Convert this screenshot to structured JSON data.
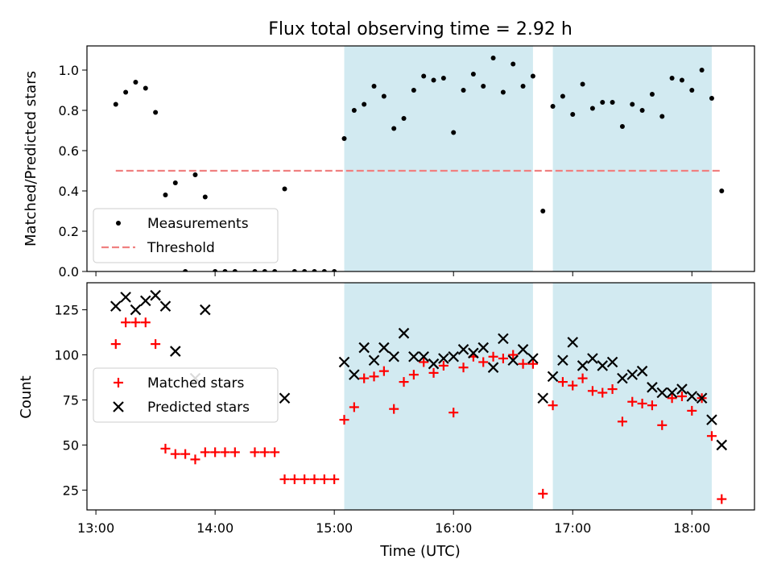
{
  "chart_data": {
    "type": "scatter",
    "title": "Flux total observing time = 2.92 h",
    "xlabel": "Time (UTC)",
    "x_ticks": [
      "13:00",
      "14:00",
      "15:00",
      "16:00",
      "17:00",
      "18:00"
    ],
    "shaded_intervals": [
      [
        "15:05",
        "16:40"
      ],
      [
        "16:50",
        "18:10"
      ]
    ],
    "shade_color": "#add8e6",
    "panels": [
      {
        "id": "ratio",
        "ylabel": "Matched/Predicted stars",
        "ylim": [
          0.0,
          1.12
        ],
        "y_ticks": [
          "0.0",
          "0.2",
          "0.4",
          "0.6",
          "0.8",
          "1.0"
        ],
        "legend": {
          "placement": "lower-left",
          "entries": [
            "Measurements",
            "Threshold"
          ]
        },
        "threshold": {
          "name": "Threshold",
          "value": 0.5,
          "x_range": [
            "13:10",
            "18:15"
          ],
          "color": "#f08080"
        },
        "series": [
          {
            "name": "Measurements",
            "marker": "dot",
            "color": "#000000",
            "points": [
              [
                "13:10",
                0.83
              ],
              [
                "13:15",
                0.89
              ],
              [
                "13:20",
                0.94
              ],
              [
                "13:25",
                0.91
              ],
              [
                "13:30",
                0.79
              ],
              [
                "13:35",
                0.38
              ],
              [
                "13:40",
                0.44
              ],
              [
                "13:45",
                0.0
              ],
              [
                "13:50",
                0.48
              ],
              [
                "13:55",
                0.37
              ],
              [
                "14:00",
                0.0
              ],
              [
                "14:05",
                0.0
              ],
              [
                "14:10",
                0.0
              ],
              [
                "14:20",
                0.0
              ],
              [
                "14:25",
                0.0
              ],
              [
                "14:30",
                0.0
              ],
              [
                "14:35",
                0.41
              ],
              [
                "14:40",
                0.0
              ],
              [
                "14:45",
                0.0
              ],
              [
                "14:50",
                0.0
              ],
              [
                "14:55",
                0.0
              ],
              [
                "15:00",
                0.0
              ],
              [
                "15:05",
                0.66
              ],
              [
                "15:10",
                0.8
              ],
              [
                "15:15",
                0.83
              ],
              [
                "15:20",
                0.92
              ],
              [
                "15:25",
                0.87
              ],
              [
                "15:30",
                0.71
              ],
              [
                "15:35",
                0.76
              ],
              [
                "15:40",
                0.9
              ],
              [
                "15:45",
                0.97
              ],
              [
                "15:50",
                0.95
              ],
              [
                "15:55",
                0.96
              ],
              [
                "16:00",
                0.69
              ],
              [
                "16:05",
                0.9
              ],
              [
                "16:10",
                0.98
              ],
              [
                "16:15",
                0.92
              ],
              [
                "16:20",
                1.06
              ],
              [
                "16:25",
                0.89
              ],
              [
                "16:30",
                1.03
              ],
              [
                "16:35",
                0.92
              ],
              [
                "16:40",
                0.97
              ],
              [
                "16:45",
                0.3
              ],
              [
                "16:50",
                0.82
              ],
              [
                "16:55",
                0.87
              ],
              [
                "17:00",
                0.78
              ],
              [
                "17:05",
                0.93
              ],
              [
                "17:10",
                0.81
              ],
              [
                "17:15",
                0.84
              ],
              [
                "17:20",
                0.84
              ],
              [
                "17:25",
                0.72
              ],
              [
                "17:30",
                0.83
              ],
              [
                "17:35",
                0.8
              ],
              [
                "17:40",
                0.88
              ],
              [
                "17:45",
                0.77
              ],
              [
                "17:50",
                0.96
              ],
              [
                "17:55",
                0.95
              ],
              [
                "18:00",
                0.9
              ],
              [
                "18:05",
                1.0
              ],
              [
                "18:10",
                0.86
              ],
              [
                "18:15",
                0.4
              ]
            ]
          }
        ]
      },
      {
        "id": "count",
        "ylabel": "Count",
        "ylim": [
          14,
          140
        ],
        "y_ticks": [
          "25",
          "50",
          "75",
          "100",
          "125"
        ],
        "legend": {
          "placement": "center-left",
          "entries": [
            "Matched stars",
            "Predicted stars"
          ]
        },
        "series": [
          {
            "name": "Matched stars",
            "marker": "plus",
            "color": "#ff0000",
            "points": [
              [
                "13:10",
                106
              ],
              [
                "13:15",
                118
              ],
              [
                "13:20",
                118
              ],
              [
                "13:25",
                118
              ],
              [
                "13:30",
                106
              ],
              [
                "13:35",
                48
              ],
              [
                "13:40",
                45
              ],
              [
                "13:45",
                45
              ],
              [
                "13:50",
                42
              ],
              [
                "13:55",
                46
              ],
              [
                "14:00",
                46
              ],
              [
                "14:05",
                46
              ],
              [
                "14:10",
                46
              ],
              [
                "14:20",
                46
              ],
              [
                "14:25",
                46
              ],
              [
                "14:30",
                46
              ],
              [
                "14:35",
                31
              ],
              [
                "14:40",
                31
              ],
              [
                "14:45",
                31
              ],
              [
                "14:50",
                31
              ],
              [
                "14:55",
                31
              ],
              [
                "15:00",
                31
              ],
              [
                "15:05",
                64
              ],
              [
                "15:10",
                71
              ],
              [
                "15:15",
                87
              ],
              [
                "15:20",
                88
              ],
              [
                "15:25",
                91
              ],
              [
                "15:30",
                70
              ],
              [
                "15:35",
                85
              ],
              [
                "15:40",
                89
              ],
              [
                "15:45",
                96
              ],
              [
                "15:50",
                90
              ],
              [
                "15:55",
                94
              ],
              [
                "16:00",
                68
              ],
              [
                "16:05",
                93
              ],
              [
                "16:10",
                99
              ],
              [
                "16:15",
                96
              ],
              [
                "16:20",
                99
              ],
              [
                "16:25",
                98
              ],
              [
                "16:30",
                100
              ],
              [
                "16:35",
                95
              ],
              [
                "16:40",
                95
              ],
              [
                "16:45",
                23
              ],
              [
                "16:50",
                72
              ],
              [
                "16:55",
                85
              ],
              [
                "17:00",
                83
              ],
              [
                "17:05",
                87
              ],
              [
                "17:10",
                80
              ],
              [
                "17:15",
                79
              ],
              [
                "17:20",
                81
              ],
              [
                "17:25",
                63
              ],
              [
                "17:30",
                74
              ],
              [
                "17:35",
                73
              ],
              [
                "17:40",
                72
              ],
              [
                "17:45",
                61
              ],
              [
                "17:50",
                76
              ],
              [
                "17:55",
                77
              ],
              [
                "18:00",
                69
              ],
              [
                "18:05",
                76
              ],
              [
                "18:10",
                55
              ],
              [
                "18:15",
                20
              ]
            ]
          },
          {
            "name": "Predicted stars",
            "marker": "cross",
            "color": "#000000",
            "points": [
              [
                "13:10",
                127
              ],
              [
                "13:15",
                132
              ],
              [
                "13:20",
                125
              ],
              [
                "13:25",
                130
              ],
              [
                "13:30",
                133
              ],
              [
                "13:35",
                127
              ],
              [
                "13:40",
                102
              ],
              [
                "13:50",
                87
              ],
              [
                "13:55",
                125
              ],
              [
                "14:35",
                76
              ],
              [
                "15:05",
                96
              ],
              [
                "15:10",
                89
              ],
              [
                "15:15",
                104
              ],
              [
                "15:20",
                97
              ],
              [
                "15:25",
                104
              ],
              [
                "15:30",
                99
              ],
              [
                "15:35",
                112
              ],
              [
                "15:40",
                99
              ],
              [
                "15:45",
                99
              ],
              [
                "15:50",
                95
              ],
              [
                "15:55",
                98
              ],
              [
                "16:00",
                99
              ],
              [
                "16:05",
                103
              ],
              [
                "16:10",
                101
              ],
              [
                "16:15",
                104
              ],
              [
                "16:20",
                93
              ],
              [
                "16:25",
                109
              ],
              [
                "16:30",
                97
              ],
              [
                "16:35",
                103
              ],
              [
                "16:40",
                98
              ],
              [
                "16:45",
                76
              ],
              [
                "16:50",
                88
              ],
              [
                "16:55",
                97
              ],
              [
                "17:00",
                107
              ],
              [
                "17:05",
                94
              ],
              [
                "17:10",
                98
              ],
              [
                "17:15",
                94
              ],
              [
                "17:20",
                96
              ],
              [
                "17:25",
                87
              ],
              [
                "17:30",
                89
              ],
              [
                "17:35",
                91
              ],
              [
                "17:40",
                82
              ],
              [
                "17:45",
                79
              ],
              [
                "17:50",
                79
              ],
              [
                "17:55",
                81
              ],
              [
                "18:00",
                77
              ],
              [
                "18:05",
                76
              ],
              [
                "18:10",
                64
              ],
              [
                "18:15",
                50
              ]
            ]
          }
        ]
      }
    ]
  }
}
